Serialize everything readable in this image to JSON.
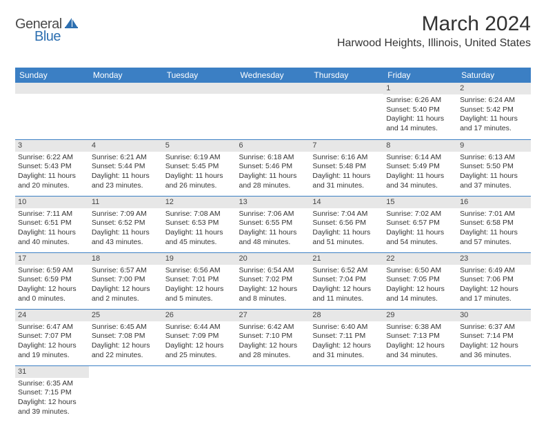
{
  "logo": {
    "general": "General",
    "blue": "Blue"
  },
  "title": "March 2024",
  "location": "Harwood Heights, Illinois, United States",
  "colors": {
    "header_bg": "#3b7fc4",
    "header_text": "#ffffff",
    "daynum_bg": "#e7e7e7",
    "cell_border": "#3b7fc4",
    "logo_gray": "#4a4a4a",
    "logo_blue": "#2d6fb0"
  },
  "typography": {
    "title_fontsize": 30,
    "location_fontsize": 16,
    "header_fontsize": 12,
    "daynum_fontsize": 11,
    "body_fontsize": 10.5
  },
  "day_headers": [
    "Sunday",
    "Monday",
    "Tuesday",
    "Wednesday",
    "Thursday",
    "Friday",
    "Saturday"
  ],
  "weeks": [
    [
      null,
      null,
      null,
      null,
      null,
      {
        "n": "1",
        "sunrise": "6:26 AM",
        "sunset": "5:40 PM",
        "dl1": "Daylight: 11 hours",
        "dl2": "and 14 minutes."
      },
      {
        "n": "2",
        "sunrise": "6:24 AM",
        "sunset": "5:42 PM",
        "dl1": "Daylight: 11 hours",
        "dl2": "and 17 minutes."
      }
    ],
    [
      {
        "n": "3",
        "sunrise": "6:22 AM",
        "sunset": "5:43 PM",
        "dl1": "Daylight: 11 hours",
        "dl2": "and 20 minutes."
      },
      {
        "n": "4",
        "sunrise": "6:21 AM",
        "sunset": "5:44 PM",
        "dl1": "Daylight: 11 hours",
        "dl2": "and 23 minutes."
      },
      {
        "n": "5",
        "sunrise": "6:19 AM",
        "sunset": "5:45 PM",
        "dl1": "Daylight: 11 hours",
        "dl2": "and 26 minutes."
      },
      {
        "n": "6",
        "sunrise": "6:18 AM",
        "sunset": "5:46 PM",
        "dl1": "Daylight: 11 hours",
        "dl2": "and 28 minutes."
      },
      {
        "n": "7",
        "sunrise": "6:16 AM",
        "sunset": "5:48 PM",
        "dl1": "Daylight: 11 hours",
        "dl2": "and 31 minutes."
      },
      {
        "n": "8",
        "sunrise": "6:14 AM",
        "sunset": "5:49 PM",
        "dl1": "Daylight: 11 hours",
        "dl2": "and 34 minutes."
      },
      {
        "n": "9",
        "sunrise": "6:13 AM",
        "sunset": "5:50 PM",
        "dl1": "Daylight: 11 hours",
        "dl2": "and 37 minutes."
      }
    ],
    [
      {
        "n": "10",
        "sunrise": "7:11 AM",
        "sunset": "6:51 PM",
        "dl1": "Daylight: 11 hours",
        "dl2": "and 40 minutes."
      },
      {
        "n": "11",
        "sunrise": "7:09 AM",
        "sunset": "6:52 PM",
        "dl1": "Daylight: 11 hours",
        "dl2": "and 43 minutes."
      },
      {
        "n": "12",
        "sunrise": "7:08 AM",
        "sunset": "6:53 PM",
        "dl1": "Daylight: 11 hours",
        "dl2": "and 45 minutes."
      },
      {
        "n": "13",
        "sunrise": "7:06 AM",
        "sunset": "6:55 PM",
        "dl1": "Daylight: 11 hours",
        "dl2": "and 48 minutes."
      },
      {
        "n": "14",
        "sunrise": "7:04 AM",
        "sunset": "6:56 PM",
        "dl1": "Daylight: 11 hours",
        "dl2": "and 51 minutes."
      },
      {
        "n": "15",
        "sunrise": "7:02 AM",
        "sunset": "6:57 PM",
        "dl1": "Daylight: 11 hours",
        "dl2": "and 54 minutes."
      },
      {
        "n": "16",
        "sunrise": "7:01 AM",
        "sunset": "6:58 PM",
        "dl1": "Daylight: 11 hours",
        "dl2": "and 57 minutes."
      }
    ],
    [
      {
        "n": "17",
        "sunrise": "6:59 AM",
        "sunset": "6:59 PM",
        "dl1": "Daylight: 12 hours",
        "dl2": "and 0 minutes."
      },
      {
        "n": "18",
        "sunrise": "6:57 AM",
        "sunset": "7:00 PM",
        "dl1": "Daylight: 12 hours",
        "dl2": "and 2 minutes."
      },
      {
        "n": "19",
        "sunrise": "6:56 AM",
        "sunset": "7:01 PM",
        "dl1": "Daylight: 12 hours",
        "dl2": "and 5 minutes."
      },
      {
        "n": "20",
        "sunrise": "6:54 AM",
        "sunset": "7:02 PM",
        "dl1": "Daylight: 12 hours",
        "dl2": "and 8 minutes."
      },
      {
        "n": "21",
        "sunrise": "6:52 AM",
        "sunset": "7:04 PM",
        "dl1": "Daylight: 12 hours",
        "dl2": "and 11 minutes."
      },
      {
        "n": "22",
        "sunrise": "6:50 AM",
        "sunset": "7:05 PM",
        "dl1": "Daylight: 12 hours",
        "dl2": "and 14 minutes."
      },
      {
        "n": "23",
        "sunrise": "6:49 AM",
        "sunset": "7:06 PM",
        "dl1": "Daylight: 12 hours",
        "dl2": "and 17 minutes."
      }
    ],
    [
      {
        "n": "24",
        "sunrise": "6:47 AM",
        "sunset": "7:07 PM",
        "dl1": "Daylight: 12 hours",
        "dl2": "and 19 minutes."
      },
      {
        "n": "25",
        "sunrise": "6:45 AM",
        "sunset": "7:08 PM",
        "dl1": "Daylight: 12 hours",
        "dl2": "and 22 minutes."
      },
      {
        "n": "26",
        "sunrise": "6:44 AM",
        "sunset": "7:09 PM",
        "dl1": "Daylight: 12 hours",
        "dl2": "and 25 minutes."
      },
      {
        "n": "27",
        "sunrise": "6:42 AM",
        "sunset": "7:10 PM",
        "dl1": "Daylight: 12 hours",
        "dl2": "and 28 minutes."
      },
      {
        "n": "28",
        "sunrise": "6:40 AM",
        "sunset": "7:11 PM",
        "dl1": "Daylight: 12 hours",
        "dl2": "and 31 minutes."
      },
      {
        "n": "29",
        "sunrise": "6:38 AM",
        "sunset": "7:13 PM",
        "dl1": "Daylight: 12 hours",
        "dl2": "and 34 minutes."
      },
      {
        "n": "30",
        "sunrise": "6:37 AM",
        "sunset": "7:14 PM",
        "dl1": "Daylight: 12 hours",
        "dl2": "and 36 minutes."
      }
    ],
    [
      {
        "n": "31",
        "sunrise": "6:35 AM",
        "sunset": "7:15 PM",
        "dl1": "Daylight: 12 hours",
        "dl2": "and 39 minutes."
      },
      null,
      null,
      null,
      null,
      null,
      null
    ]
  ]
}
